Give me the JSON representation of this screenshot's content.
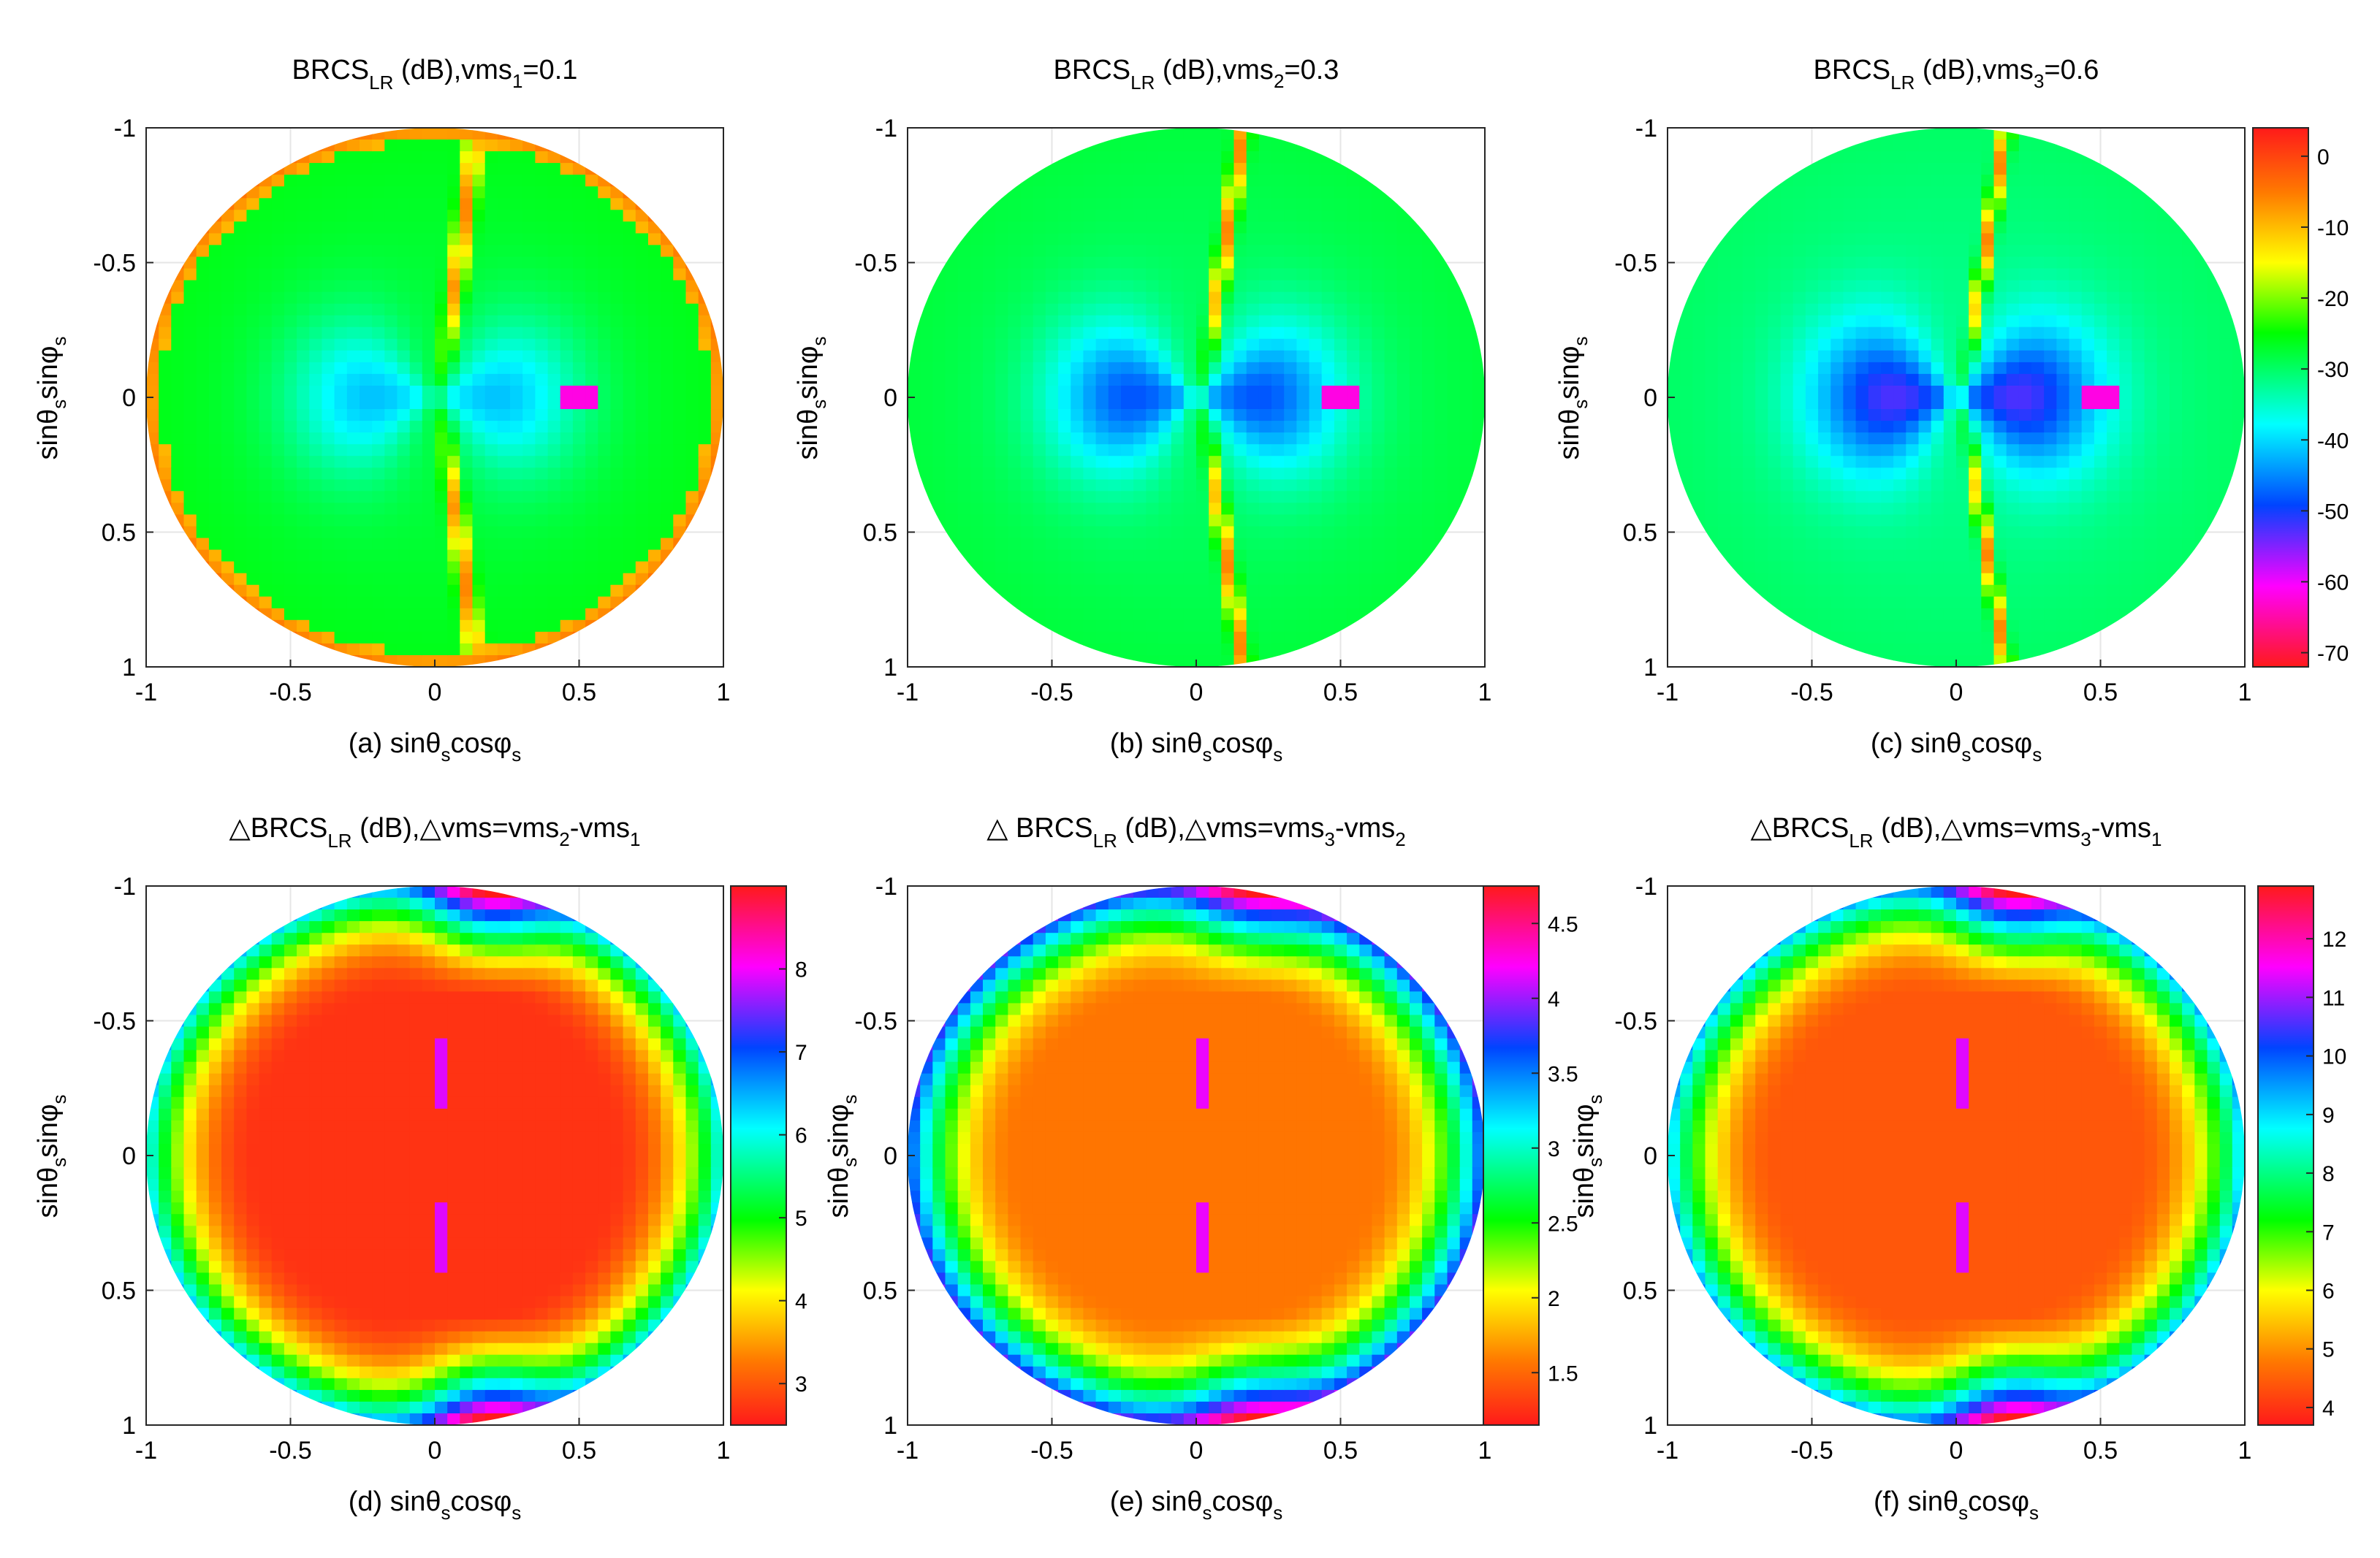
{
  "chart_data": [
    {
      "id": "a",
      "type": "heatmap",
      "title": {
        "base": "BRCS",
        "sub": "LR",
        "mid": " (dB),vms",
        "sub2": "1",
        "tail": "=0.1"
      },
      "caption": {
        "prefix": "(a) sin",
        "s1": "s",
        "mid": "cos",
        "s2": "s"
      },
      "ylabel": {
        "prefix": "sin",
        "s1": "s",
        "mid": "sin",
        "s2": "s"
      },
      "xlim": [
        -1,
        1
      ],
      "ylim": [
        -1,
        1
      ],
      "xticks": [
        "-1",
        "-0.5",
        "0",
        "0.5",
        "1"
      ],
      "yticks": [
        "-1",
        "-0.5",
        "0",
        "0.5",
        "1"
      ],
      "field": {
        "kind": "brcs",
        "ring": 1.0,
        "base": -42,
        "lobe": -31,
        "ridge_a": 0.25,
        "ridge_b": 0.14
      }
    },
    {
      "id": "b",
      "type": "heatmap",
      "title": {
        "base": "BRCS",
        "sub": "LR",
        "mid": " (dB),vms",
        "sub2": "2",
        "tail": "=0.3"
      },
      "caption": {
        "prefix": "(b) sin",
        "s1": "s",
        "mid": "cos",
        "s2": "s"
      },
      "ylabel": {
        "prefix": "sin",
        "s1": "s",
        "mid": "sin",
        "s2": "s"
      },
      "xlim": [
        -1,
        1
      ],
      "ylim": [
        -1,
        1
      ],
      "xticks": [
        "-1",
        "-0.5",
        "0",
        "0.5",
        "1"
      ],
      "yticks": [
        "-1",
        "-0.5",
        "0",
        "0.5",
        "1"
      ],
      "field": {
        "kind": "brcs",
        "ring": 0.0,
        "base": -40,
        "lobe": -25,
        "ridge_a": 0.18,
        "ridge_b": 0.16
      }
    },
    {
      "id": "c",
      "type": "heatmap",
      "title": {
        "base": "BRCS",
        "sub": "LR",
        "mid": " (dB),vms",
        "sub2": "3",
        "tail": "=0.6"
      },
      "caption": {
        "prefix": "(c) sin",
        "s1": "s",
        "mid": "cos",
        "s2": "s"
      },
      "ylabel": {
        "prefix": "sin",
        "s1": "s",
        "mid": "sin",
        "s2": "s"
      },
      "xlim": [
        -1,
        1
      ],
      "ylim": [
        -1,
        1
      ],
      "xticks": [
        "-1",
        "-0.5",
        "0",
        "0.5",
        "1"
      ],
      "yticks": [
        "-1",
        "-0.5",
        "0",
        "0.5",
        "1"
      ],
      "field": {
        "kind": "brcs",
        "ring": 0.0,
        "base": -38,
        "lobe": -21,
        "ridge_a": 0.14,
        "ridge_b": 0.17
      },
      "colorbar": {
        "min": -72,
        "max": 4,
        "reversed": true,
        "ticks": [
          {
            "v": 0,
            "label": "0"
          },
          {
            "v": -10,
            "label": "-10"
          },
          {
            "v": -20,
            "label": "-20"
          },
          {
            "v": -30,
            "label": "-30"
          },
          {
            "v": -40,
            "label": "-40"
          },
          {
            "v": -50,
            "label": "-50"
          },
          {
            "v": -60,
            "label": "-60"
          },
          {
            "v": -70,
            "label": "-70"
          }
        ]
      }
    },
    {
      "id": "d",
      "type": "heatmap",
      "title": {
        "base": "△BRCS",
        "sub": "LR",
        "mid": " (dB),△vms=vms",
        "sub2": "2",
        "mid2": "-vms",
        "sub3": "1"
      },
      "caption": {
        "prefix": "(d) sin",
        "s1": "s",
        "mid": "cos",
        "s2": "s"
      },
      "ylabel": {
        "prefix": "sin",
        "s1": "s",
        "mid": "sin",
        "s2": "s"
      },
      "xlim": [
        -1,
        1
      ],
      "ylim": [
        -1,
        1
      ],
      "xticks": [
        "-1",
        "-0.5",
        "0",
        "0.5",
        "1"
      ],
      "yticks": [
        "-1",
        "-0.5",
        "0",
        "0.5",
        "1"
      ],
      "field": {
        "kind": "delta",
        "lo": 2.6,
        "hi": 9.0,
        "core": 2.8,
        "edge": 6.2
      },
      "colorbar": {
        "min": 2.5,
        "max": 9.0,
        "reversed": false,
        "ticks": [
          {
            "v": 8,
            "label": "8"
          },
          {
            "v": 7,
            "label": "7"
          },
          {
            "v": 6,
            "label": "6"
          },
          {
            "v": 5,
            "label": "5"
          },
          {
            "v": 4,
            "label": "4"
          },
          {
            "v": 3,
            "label": "3"
          }
        ]
      }
    },
    {
      "id": "e",
      "type": "heatmap",
      "title": {
        "base": "△ BRCS",
        "sub": "LR",
        "mid": " (dB),△vms=vms",
        "sub2": "3",
        "mid2": "-vms",
        "sub3": "2"
      },
      "caption": {
        "prefix": "(e) sin",
        "s1": "s",
        "mid": "cos",
        "s2": "s"
      },
      "ylabel": {
        "prefix": "sin",
        "s1": "s",
        "mid": "sin",
        "s2": "s"
      },
      "xlim": [
        -1,
        1
      ],
      "ylim": [
        -1,
        1
      ],
      "xticks": [
        "-1",
        "-0.5",
        "0",
        "0.5",
        "1"
      ],
      "yticks": [
        "-1",
        "-0.5",
        "0",
        "0.5",
        "1"
      ],
      "field": {
        "kind": "delta",
        "lo": 1.2,
        "hi": 4.7,
        "core": 1.6,
        "edge": 3.7
      },
      "colorbar": {
        "min": 1.15,
        "max": 4.75,
        "reversed": false,
        "ticks": [
          {
            "v": 4.5,
            "label": "4.5"
          },
          {
            "v": 4,
            "label": "4"
          },
          {
            "v": 3.5,
            "label": "3.5"
          },
          {
            "v": 3,
            "label": "3"
          },
          {
            "v": 2.5,
            "label": "2.5"
          },
          {
            "v": 2,
            "label": "2"
          },
          {
            "v": 1.5,
            "label": "1.5"
          }
        ]
      }
    },
    {
      "id": "f",
      "type": "heatmap",
      "title": {
        "base": "△BRCS",
        "sub": "LR",
        "mid": " (dB),△vms=vms",
        "sub2": "3",
        "mid2": "-vms",
        "sub3": "1"
      },
      "caption": {
        "prefix": "(f) sin",
        "s1": "s",
        "mid": "cos",
        "s2": "s"
      },
      "ylabel": {
        "prefix": "sin",
        "s1": "s",
        "mid": "sin",
        "s2": "s"
      },
      "xlim": [
        -1,
        1
      ],
      "ylim": [
        -1,
        1
      ],
      "xticks": [
        "-1",
        "-0.5",
        "0",
        "0.5",
        "1"
      ],
      "yticks": [
        "-1",
        "-0.5",
        "0",
        "0.5",
        "1"
      ],
      "field": {
        "kind": "delta",
        "lo": 3.7,
        "hi": 12.9,
        "core": 4.4,
        "edge": 9.2
      },
      "colorbar": {
        "min": 3.7,
        "max": 12.9,
        "reversed": false,
        "ticks": [
          {
            "v": 12,
            "label": "12"
          },
          {
            "v": 11,
            "label": "11"
          },
          {
            "v": 10,
            "label": "10"
          },
          {
            "v": 9,
            "label": "9"
          },
          {
            "v": 8,
            "label": "8"
          },
          {
            "v": 7,
            "label": "7"
          },
          {
            "v": 6,
            "label": "6"
          },
          {
            "v": 5,
            "label": "5"
          },
          {
            "v": 4,
            "label": "4"
          }
        ]
      }
    }
  ]
}
